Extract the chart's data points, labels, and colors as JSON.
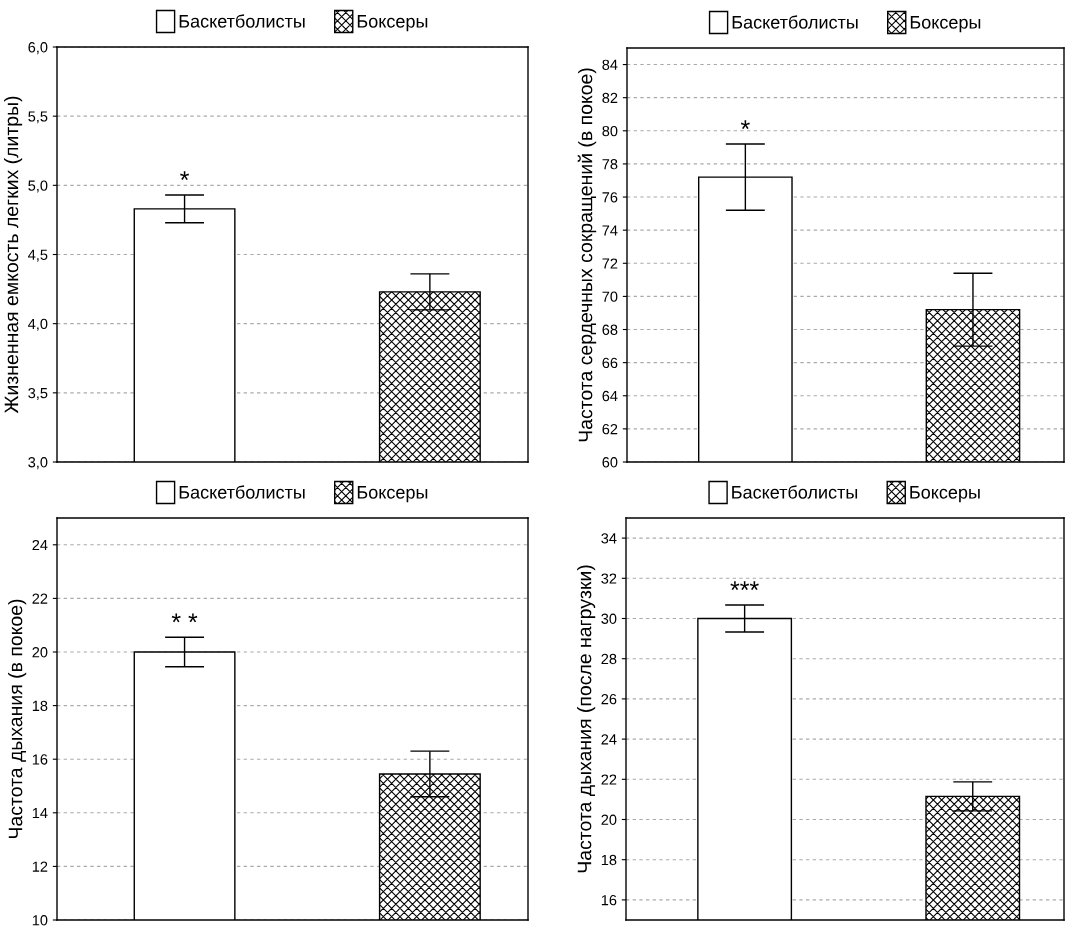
{
  "chart_data": [
    {
      "type": "bar",
      "categories": [
        null,
        null
      ],
      "ylabel": "Жизненная емкость легких (литры)",
      "ylim": [
        3.0,
        6.0
      ],
      "yticks": [
        {
          "value": 3.0,
          "label": "3,0"
        },
        {
          "value": 3.5,
          "label": "3,5"
        },
        {
          "value": 4.0,
          "label": "4,0"
        },
        {
          "value": 4.5,
          "label": "4,5"
        },
        {
          "value": 5.0,
          "label": "5,0"
        },
        {
          "value": 5.5,
          "label": "5,5"
        },
        {
          "value": 6.0,
          "label": "6,0"
        }
      ],
      "series": [
        {
          "name": "Баскетболисты",
          "color": "#ffffff",
          "values": [
            4.83,
            null
          ],
          "errors": [
            0.1,
            null
          ]
        },
        {
          "name": "Боксеры",
          "color": "#000000",
          "values": [
            null,
            4.23
          ],
          "errors": [
            null,
            0.13
          ]
        }
      ],
      "annotations": [
        {
          "text": "*",
          "y": 4.93
        }
      ],
      "grid": "y",
      "legend": "top",
      "tick_labels": "y"
    },
    {
      "type": "bar",
      "categories": [
        null,
        null
      ],
      "ylabel": "Частота сердечных сокращений (в покое)",
      "ylim": [
        60,
        85
      ],
      "yticks": [
        60,
        62,
        64,
        66,
        68,
        70,
        72,
        74,
        76,
        78,
        80,
        82,
        84
      ],
      "series": [
        {
          "name": "Баскетболисты",
          "color": "#ffffff",
          "values": [
            77.2,
            null
          ],
          "errors": [
            2.0,
            null
          ]
        },
        {
          "name": "Боксеры",
          "color": "#000000",
          "values": [
            null,
            69.2
          ],
          "errors": [
            null,
            2.2
          ]
        }
      ],
      "annotations": [
        {
          "text": "*",
          "y": 79.2
        }
      ],
      "grid": "y",
      "legend": "top",
      "tick_labels": "y"
    },
    {
      "type": "bar",
      "categories": [
        null,
        null
      ],
      "ylabel": "Частота дыхания (в покое)",
      "ylim": [
        10,
        25
      ],
      "yticks": [
        10,
        12,
        14,
        16,
        18,
        20,
        22,
        24
      ],
      "series": [
        {
          "name": "Баскетболисты",
          "color": "#ffffff",
          "values": [
            20.0,
            null
          ],
          "errors": [
            0.55,
            null
          ]
        },
        {
          "name": "Боксеры",
          "color": "#000000",
          "values": [
            null,
            15.45
          ],
          "errors": [
            null,
            0.85
          ]
        }
      ],
      "annotations": [
        {
          "text": "* *",
          "y": 20.55
        }
      ],
      "grid": "y",
      "legend": "top",
      "tick_labels": "y"
    },
    {
      "type": "bar",
      "categories": [
        null,
        null
      ],
      "ylabel": "Частота дыхания (после нагрузки)",
      "ylim": [
        15,
        35
      ],
      "yticks": [
        16,
        18,
        20,
        22,
        24,
        26,
        28,
        30,
        32,
        34
      ],
      "series": [
        {
          "name": "Баскетболисты",
          "color": "#ffffff",
          "values": [
            30.0,
            null
          ],
          "errors": [
            0.67,
            null
          ]
        },
        {
          "name": "Боксеры",
          "color": "#000000",
          "values": [
            null,
            21.15
          ],
          "errors": [
            null,
            0.72
          ]
        }
      ],
      "annotations": [
        {
          "text": "***",
          "y": 30.67
        }
      ],
      "grid": "y",
      "legend": "top",
      "tick_labels": "y"
    }
  ]
}
